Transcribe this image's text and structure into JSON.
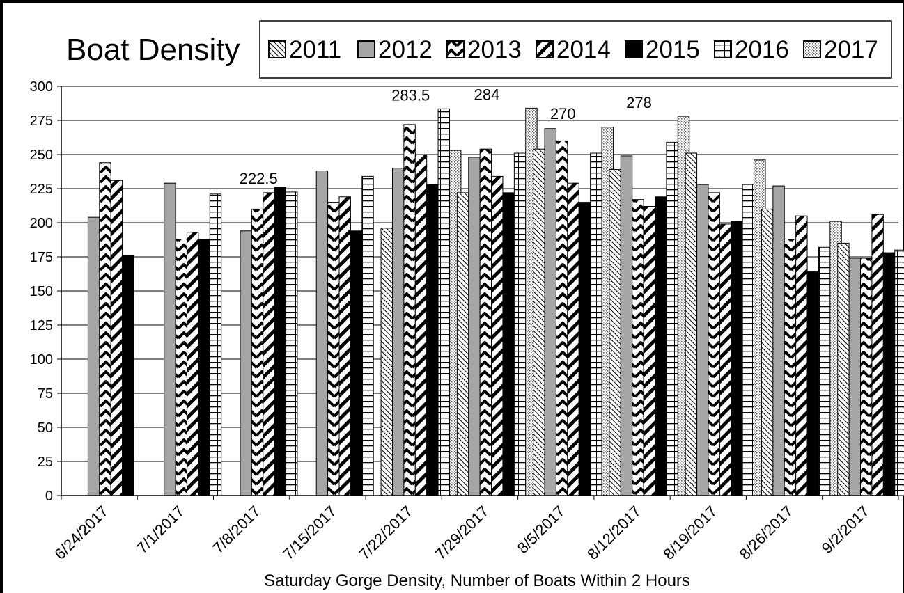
{
  "chart_data": {
    "type": "bar",
    "title": "Boat Density",
    "xlabel": "Saturday Gorge Density, Number of Boats Within 2 Hours",
    "ylabel": "",
    "ylim": [
      0,
      300
    ],
    "yticks": [
      0,
      25,
      50,
      75,
      100,
      125,
      150,
      175,
      200,
      225,
      250,
      275,
      300
    ],
    "grid": true,
    "legend_position": "top-right",
    "categories": [
      "6/24/2017",
      "7/1/2017",
      "7/8/2017",
      "7/15/2017",
      "7/22/2017",
      "7/29/2017",
      "8/5/2017",
      "8/12/2017",
      "8/19/2017",
      "8/26/2017",
      "9/2/2017"
    ],
    "series": [
      {
        "name": "2011",
        "pattern": "diag-thin",
        "values": [
          null,
          null,
          null,
          null,
          196,
          222,
          254,
          239,
          251,
          210,
          185
        ]
      },
      {
        "name": "2012",
        "pattern": "solid-gray",
        "color": "#a6a6a6",
        "values": [
          204,
          229,
          194,
          238,
          240,
          248,
          269,
          249,
          228,
          227,
          174
        ]
      },
      {
        "name": "2013",
        "pattern": "zigzag",
        "values": [
          244,
          188,
          210,
          215,
          272,
          254,
          260,
          217,
          222,
          188,
          174
        ]
      },
      {
        "name": "2014",
        "pattern": "diag-wide",
        "values": [
          231,
          193,
          222,
          219,
          250,
          234,
          229,
          212,
          199,
          205,
          206
        ]
      },
      {
        "name": "2015",
        "pattern": "solid-black",
        "color": "#000000",
        "values": [
          176,
          188,
          226,
          194,
          228,
          222,
          215,
          219,
          201,
          164,
          178
        ]
      },
      {
        "name": "2016",
        "pattern": "grid",
        "values": [
          null,
          221,
          222.5,
          234,
          283.5,
          251,
          251,
          259,
          228,
          182,
          180
        ]
      },
      {
        "name": "2017",
        "pattern": "dots",
        "values": [
          null,
          null,
          null,
          null,
          253,
          284,
          270,
          278,
          246,
          201,
          null
        ]
      }
    ],
    "annotations": [
      {
        "text": "222.5",
        "category": "7/8/2017",
        "value": 222.5
      },
      {
        "text": "283.5",
        "category": "7/22/2017",
        "value": 283.5
      },
      {
        "text": "284",
        "category": "7/29/2017",
        "value": 284
      },
      {
        "text": "270",
        "category": "8/5/2017",
        "value": 270
      },
      {
        "text": "278",
        "category": "8/12/2017",
        "value": 278
      }
    ]
  }
}
